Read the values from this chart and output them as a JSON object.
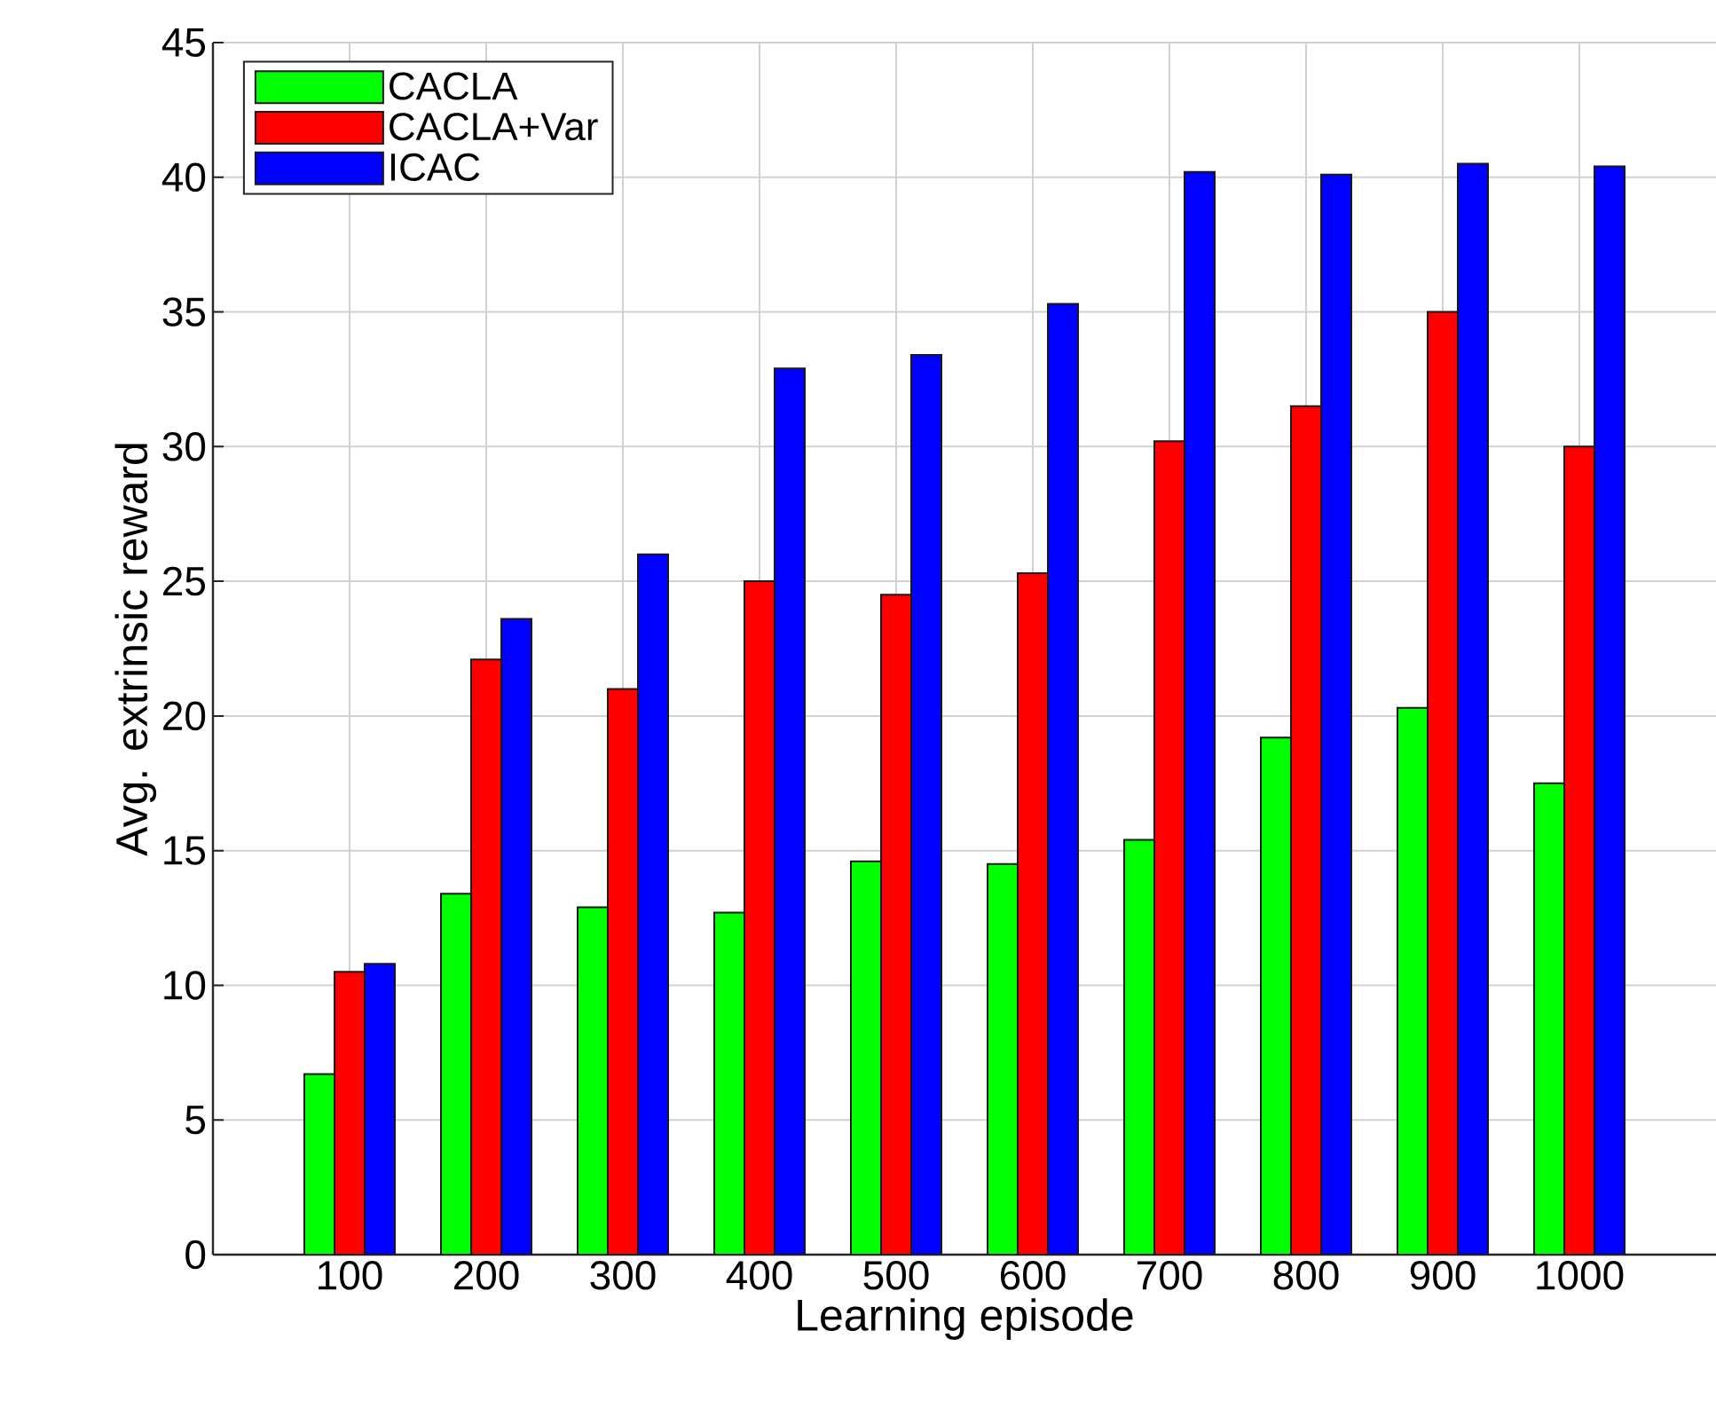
{
  "chart_data": {
    "type": "bar",
    "xlabel": "Learning episode",
    "ylabel": "Avg. extrinsic reward",
    "categories": [
      "100",
      "200",
      "300",
      "400",
      "500",
      "600",
      "700",
      "800",
      "900",
      "1000"
    ],
    "series": [
      {
        "name": "CACLA",
        "color": "#00ff00",
        "values": [
          6.7,
          13.4,
          12.9,
          12.7,
          14.6,
          14.5,
          15.4,
          19.2,
          20.3,
          17.5
        ]
      },
      {
        "name": "CACLA+Var",
        "color": "#ff0000",
        "values": [
          10.5,
          22.1,
          21.0,
          25.0,
          24.5,
          25.3,
          30.2,
          31.5,
          35.0,
          30.0
        ]
      },
      {
        "name": "ICAC",
        "color": "#0000ff",
        "values": [
          10.8,
          23.6,
          26.0,
          32.9,
          33.4,
          35.3,
          40.2,
          40.1,
          40.5,
          40.4
        ]
      }
    ],
    "ylim": [
      0,
      45
    ],
    "yticks": [
      0,
      5,
      10,
      15,
      20,
      25,
      30,
      35,
      40,
      45
    ],
    "grid": true,
    "legend": "top left"
  }
}
